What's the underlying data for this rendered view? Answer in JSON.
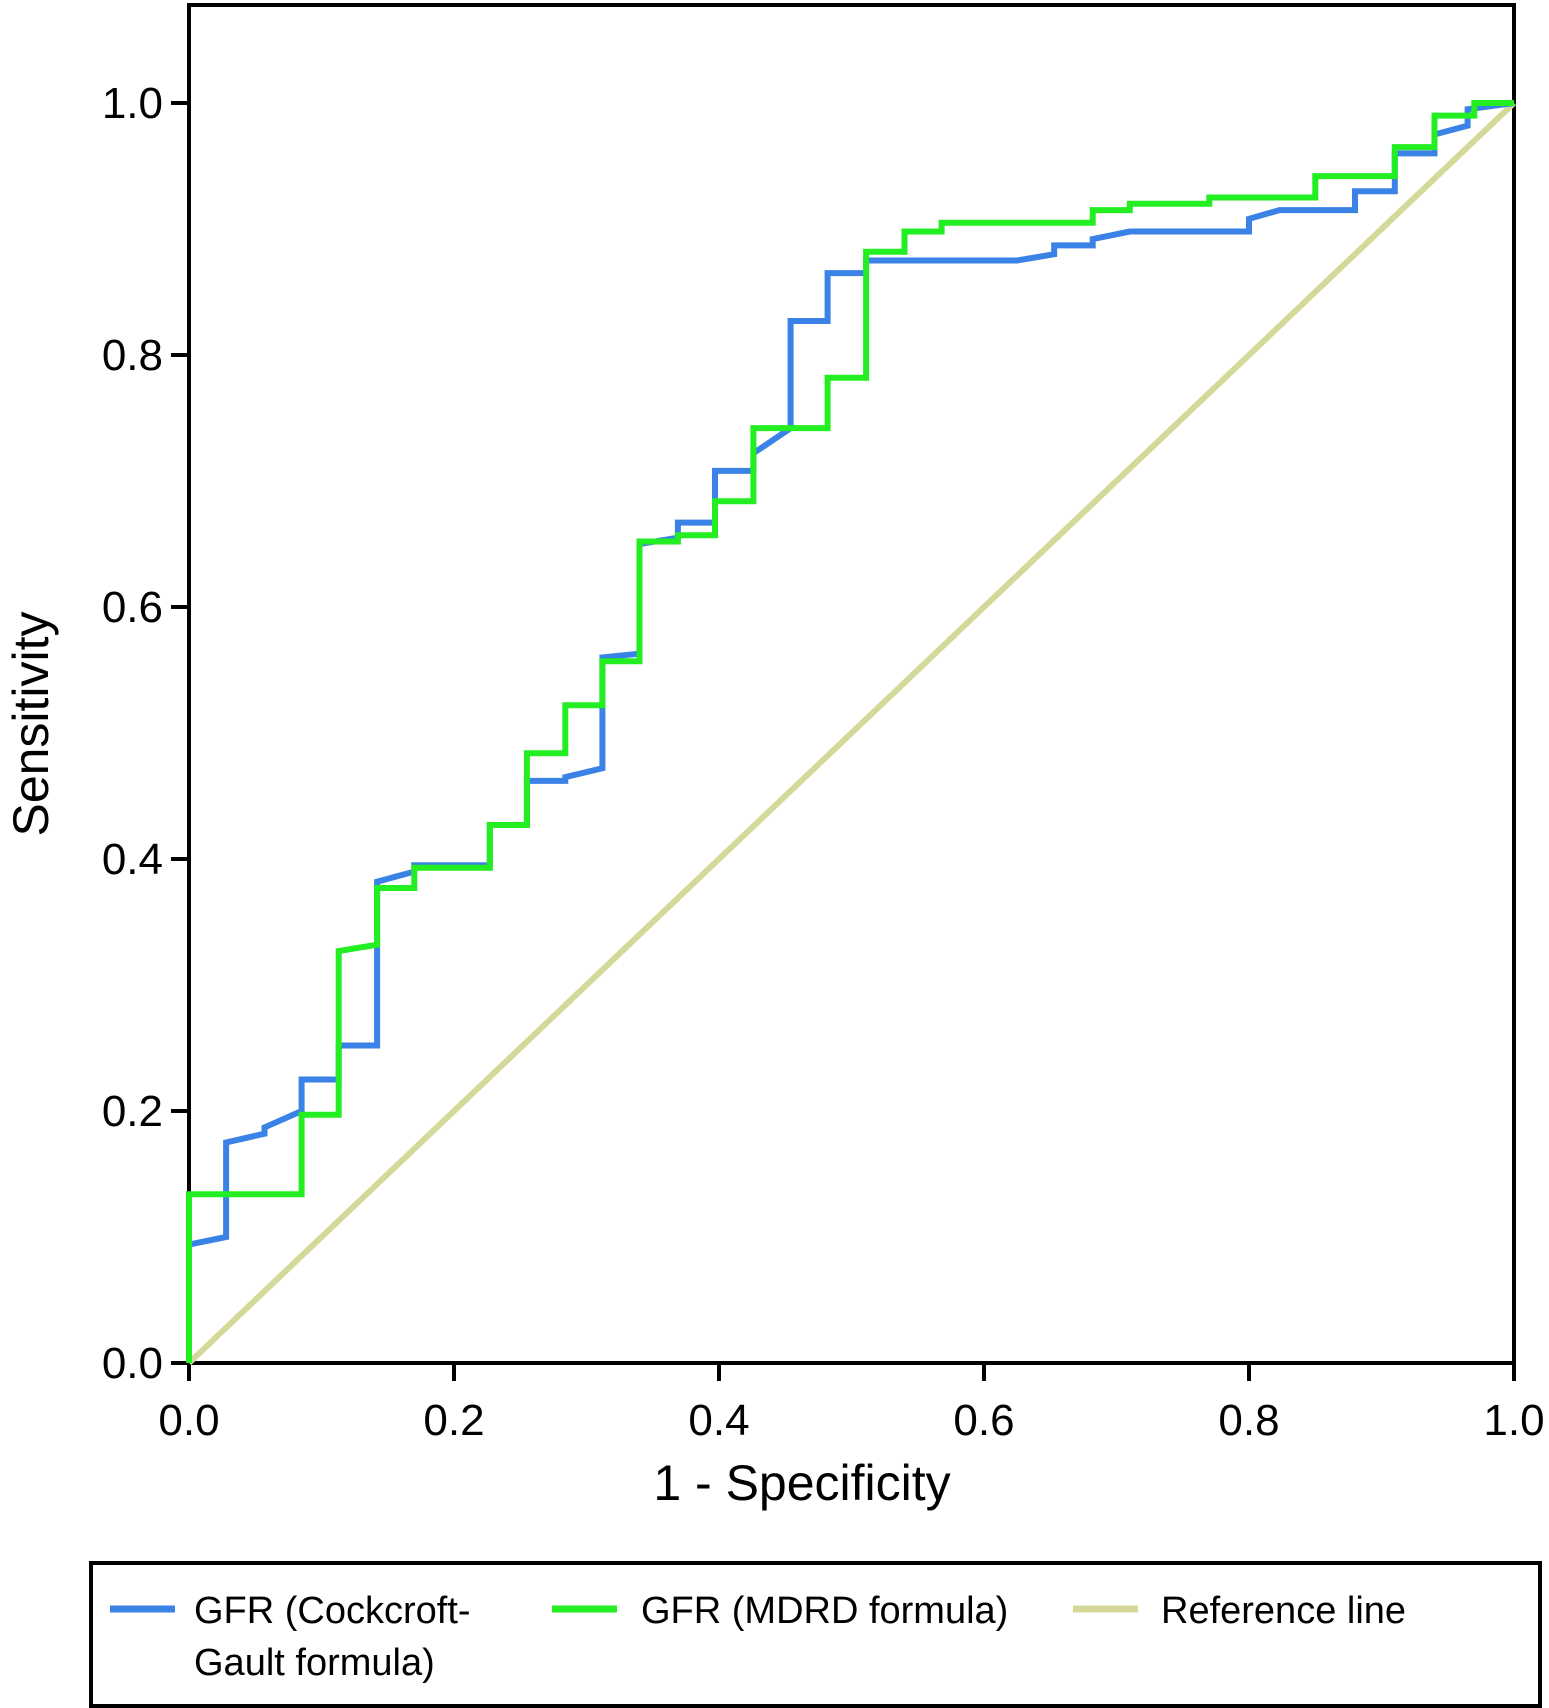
{
  "chart_data": {
    "type": "line",
    "xlabel": "1 - Specificity",
    "ylabel": "Sensitivity",
    "xlim": [
      0,
      1
    ],
    "ylim": [
      0,
      1
    ],
    "grid": false,
    "legend_placement": "bottom",
    "x_ticks": [
      "0.0",
      "0.2",
      "0.4",
      "0.6",
      "0.8",
      "1.0"
    ],
    "y_ticks": [
      "0.0",
      "0.2",
      "0.4",
      "0.6",
      "0.8",
      "1.0"
    ],
    "series": [
      {
        "name": "GFR (Cockcroft-Gault formula)",
        "color": "#3b82e6",
        "points": [
          [
            0,
            0
          ],
          [
            0,
            0.094
          ],
          [
            0.028,
            0.1
          ],
          [
            0.028,
            0.175
          ],
          [
            0.057,
            0.182
          ],
          [
            0.057,
            0.187
          ],
          [
            0.085,
            0.2
          ],
          [
            0.085,
            0.225
          ],
          [
            0.113,
            0.225
          ],
          [
            0.113,
            0.252
          ],
          [
            0.142,
            0.252
          ],
          [
            0.142,
            0.382
          ],
          [
            0.17,
            0.39
          ],
          [
            0.17,
            0.395
          ],
          [
            0.227,
            0.395
          ],
          [
            0.227,
            0.427
          ],
          [
            0.255,
            0.427
          ],
          [
            0.255,
            0.462
          ],
          [
            0.284,
            0.462
          ],
          [
            0.284,
            0.465
          ],
          [
            0.312,
            0.472
          ],
          [
            0.312,
            0.56
          ],
          [
            0.34,
            0.563
          ],
          [
            0.34,
            0.65
          ],
          [
            0.369,
            0.655
          ],
          [
            0.369,
            0.667
          ],
          [
            0.397,
            0.667
          ],
          [
            0.397,
            0.708
          ],
          [
            0.426,
            0.708
          ],
          [
            0.426,
            0.722
          ],
          [
            0.454,
            0.742
          ],
          [
            0.454,
            0.827
          ],
          [
            0.482,
            0.827
          ],
          [
            0.482,
            0.865
          ],
          [
            0.511,
            0.865
          ],
          [
            0.511,
            0.875
          ],
          [
            0.625,
            0.875
          ],
          [
            0.653,
            0.88
          ],
          [
            0.653,
            0.887
          ],
          [
            0.682,
            0.887
          ],
          [
            0.682,
            0.892
          ],
          [
            0.71,
            0.898
          ],
          [
            0.8,
            0.898
          ],
          [
            0.8,
            0.908
          ],
          [
            0.823,
            0.915
          ],
          [
            0.88,
            0.915
          ],
          [
            0.88,
            0.93
          ],
          [
            0.91,
            0.93
          ],
          [
            0.91,
            0.96
          ],
          [
            0.94,
            0.96
          ],
          [
            0.94,
            0.975
          ],
          [
            0.965,
            0.982
          ],
          [
            0.965,
            0.995
          ],
          [
            1,
            1
          ]
        ]
      },
      {
        "name": "GFR (MDRD formula)",
        "color": "#22ee22",
        "points": [
          [
            0,
            0
          ],
          [
            0,
            0.134
          ],
          [
            0.085,
            0.134
          ],
          [
            0.085,
            0.197
          ],
          [
            0.113,
            0.197
          ],
          [
            0.113,
            0.327
          ],
          [
            0.142,
            0.332
          ],
          [
            0.142,
            0.377
          ],
          [
            0.17,
            0.377
          ],
          [
            0.17,
            0.393
          ],
          [
            0.227,
            0.393
          ],
          [
            0.227,
            0.427
          ],
          [
            0.255,
            0.427
          ],
          [
            0.255,
            0.484
          ],
          [
            0.284,
            0.484
          ],
          [
            0.284,
            0.522
          ],
          [
            0.312,
            0.522
          ],
          [
            0.312,
            0.557
          ],
          [
            0.34,
            0.557
          ],
          [
            0.34,
            0.652
          ],
          [
            0.369,
            0.652
          ],
          [
            0.369,
            0.657
          ],
          [
            0.397,
            0.657
          ],
          [
            0.397,
            0.684
          ],
          [
            0.426,
            0.684
          ],
          [
            0.426,
            0.742
          ],
          [
            0.482,
            0.742
          ],
          [
            0.482,
            0.782
          ],
          [
            0.511,
            0.782
          ],
          [
            0.511,
            0.882
          ],
          [
            0.54,
            0.882
          ],
          [
            0.54,
            0.898
          ],
          [
            0.568,
            0.898
          ],
          [
            0.568,
            0.905
          ],
          [
            0.682,
            0.905
          ],
          [
            0.682,
            0.915
          ],
          [
            0.71,
            0.915
          ],
          [
            0.71,
            0.92
          ],
          [
            0.77,
            0.92
          ],
          [
            0.77,
            0.925
          ],
          [
            0.85,
            0.925
          ],
          [
            0.85,
            0.942
          ],
          [
            0.91,
            0.942
          ],
          [
            0.91,
            0.965
          ],
          [
            0.94,
            0.965
          ],
          [
            0.94,
            0.99
          ],
          [
            0.97,
            0.99
          ],
          [
            0.97,
            1
          ],
          [
            1,
            1
          ]
        ]
      },
      {
        "name": "Reference line",
        "color": "#d4d99a",
        "points": [
          [
            0,
            0
          ],
          [
            1,
            1
          ]
        ]
      }
    ]
  },
  "legend": {
    "items": [
      {
        "line1": "GFR (Cockcroft-",
        "line2": "Gault formula)",
        "color": "#3b82e6"
      },
      {
        "line1": "GFR (MDRD formula)",
        "line2": "",
        "color": "#22ee22"
      },
      {
        "line1": "Reference line",
        "line2": "",
        "color": "#d4d99a"
      }
    ]
  }
}
